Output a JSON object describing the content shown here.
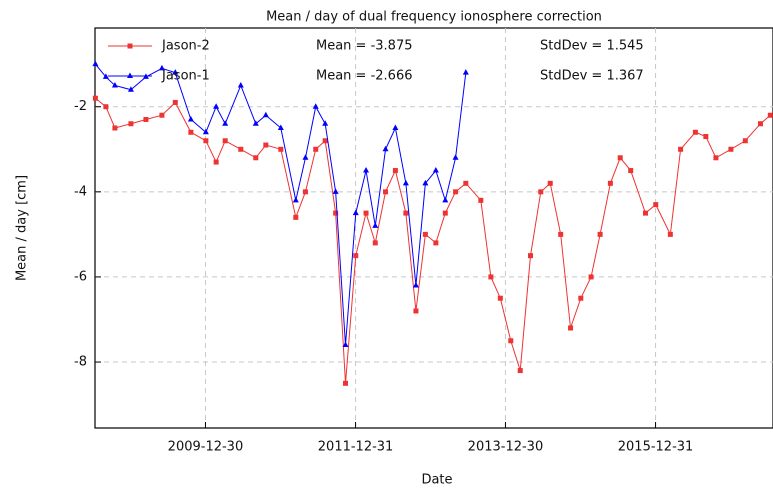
{
  "chart_data": {
    "type": "line",
    "title": "Mean / day of dual frequency ionosphere correction",
    "xlabel": "Date",
    "ylabel": "Mean / day [cm]",
    "xlim": [
      "2008-07-10",
      "2017-07-25"
    ],
    "xticks": [
      "2009-12-30",
      "2011-12-31",
      "2013-12-30",
      "2015-12-31"
    ],
    "ylim": [
      -9.55,
      -0.15
    ],
    "yticks": [
      -8,
      -6,
      -4,
      -2
    ],
    "grid": true,
    "legend": "upper left",
    "annotations": [
      "Mean = -3.875",
      "StdDev = 1.545",
      "Mean = -2.666",
      "StdDev = 1.367"
    ],
    "series": [
      {
        "name": "Jason-2",
        "color": "#ee3333",
        "marker": "square",
        "x": [
          "2008-07-12",
          "2008-09-01",
          "2008-10-15",
          "2009-01-01",
          "2009-03-15",
          "2009-06-01",
          "2009-08-05",
          "2009-10-20",
          "2010-01-01",
          "2010-02-20",
          "2010-04-05",
          "2010-06-20",
          "2010-09-01",
          "2010-10-20",
          "2011-01-01",
          "2011-03-15",
          "2011-05-01",
          "2011-06-20",
          "2011-08-05",
          "2011-09-25",
          "2011-11-12",
          "2012-01-01",
          "2012-02-20",
          "2012-04-05",
          "2012-05-25",
          "2012-07-12",
          "2012-09-01",
          "2012-10-20",
          "2012-12-05",
          "2013-01-25",
          "2013-03-12",
          "2013-05-01",
          "2013-06-20",
          "2013-09-01",
          "2013-10-20",
          "2013-12-05",
          "2014-01-25",
          "2014-03-12",
          "2014-05-01",
          "2014-06-20",
          "2014-08-05",
          "2014-09-25",
          "2014-11-12",
          "2015-01-01",
          "2015-02-20",
          "2015-04-05",
          "2015-05-25",
          "2015-07-12",
          "2015-09-01",
          "2015-11-12",
          "2016-01-01",
          "2016-03-12",
          "2016-05-01",
          "2016-07-12",
          "2016-09-01",
          "2016-10-20",
          "2017-01-01",
          "2017-03-12",
          "2017-05-25",
          "2017-07-12"
        ],
        "values": [
          -1.8,
          -2.0,
          -2.5,
          -2.4,
          -2.3,
          -2.2,
          -1.9,
          -2.6,
          -2.8,
          -3.3,
          -2.8,
          -3.0,
          -3.2,
          -2.9,
          -3.0,
          -4.6,
          -4.0,
          -3.0,
          -2.8,
          -4.5,
          -8.5,
          -5.5,
          -4.5,
          -5.2,
          -4.0,
          -3.5,
          -4.5,
          -6.8,
          -5.0,
          -5.2,
          -4.5,
          -4.0,
          -3.8,
          -4.2,
          -6.0,
          -6.5,
          -7.5,
          -8.2,
          -5.5,
          -4.0,
          -3.8,
          -5.0,
          -7.2,
          -6.5,
          -6.0,
          -5.0,
          -3.8,
          -3.2,
          -3.5,
          -4.5,
          -4.3,
          -5.0,
          -3.0,
          -2.6,
          -2.7,
          -3.2,
          -3.0,
          -2.8,
          -2.4,
          -2.2
        ]
      },
      {
        "name": "Jason-1",
        "color": "#0000ff",
        "marker": "triangle",
        "x": [
          "2008-07-12",
          "2008-09-01",
          "2008-10-15",
          "2009-01-01",
          "2009-03-15",
          "2009-06-01",
          "2009-08-05",
          "2009-10-20",
          "2010-01-01",
          "2010-02-20",
          "2010-04-05",
          "2010-06-20",
          "2010-09-01",
          "2010-10-20",
          "2011-01-01",
          "2011-03-15",
          "2011-05-01",
          "2011-06-20",
          "2011-08-05",
          "2011-09-25",
          "2011-11-12",
          "2012-01-01",
          "2012-02-20",
          "2012-04-05",
          "2012-05-25",
          "2012-07-12",
          "2012-09-01",
          "2012-10-20",
          "2012-12-05",
          "2013-01-25",
          "2013-03-12",
          "2013-05-01",
          "2013-06-20"
        ],
        "values": [
          -1.0,
          -1.3,
          -1.5,
          -1.6,
          -1.3,
          -1.1,
          -1.2,
          -2.3,
          -2.6,
          -2.0,
          -2.4,
          -1.5,
          -2.4,
          -2.2,
          -2.5,
          -4.2,
          -3.2,
          -2.0,
          -2.4,
          -4.0,
          -7.6,
          -4.5,
          -3.5,
          -4.8,
          -3.0,
          -2.5,
          -3.8,
          -6.2,
          -3.8,
          -3.5,
          -4.2,
          -3.2,
          -1.2
        ]
      }
    ]
  }
}
